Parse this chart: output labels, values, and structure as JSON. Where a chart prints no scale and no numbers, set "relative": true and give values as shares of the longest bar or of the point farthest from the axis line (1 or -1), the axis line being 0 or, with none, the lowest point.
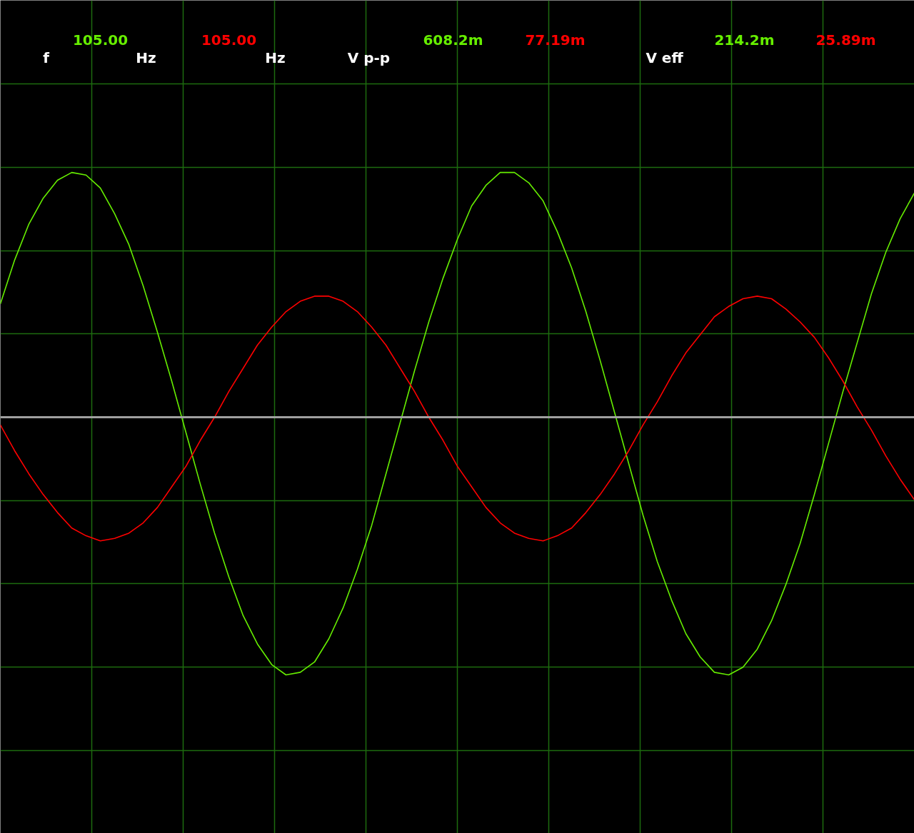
{
  "chart_data": {
    "type": "line",
    "relative": true,
    "categories": [
      null,
      null,
      null,
      null,
      null,
      null,
      null,
      null,
      null,
      null,
      null,
      null,
      null,
      null,
      null,
      null,
      null,
      null,
      null,
      null,
      null,
      null,
      null,
      null,
      null,
      null,
      null,
      null,
      null,
      null,
      null,
      null,
      null,
      null,
      null,
      null,
      null,
      null,
      null,
      null,
      null,
      null,
      null,
      null,
      null,
      null,
      null,
      null,
      null,
      null,
      null,
      null,
      null,
      null,
      null,
      null,
      null,
      null,
      null,
      null,
      null,
      null,
      null,
      null,
      null
    ],
    "series": [
      {
        "color": "#66ee00",
        "values": [
          0.44,
          0.61,
          0.75,
          0.85,
          0.92,
          0.95,
          0.94,
          0.89,
          0.79,
          0.67,
          0.51,
          0.33,
          0.14,
          -0.06,
          -0.26,
          -0.45,
          -0.62,
          -0.77,
          -0.88,
          -0.96,
          -1.0,
          -0.99,
          -0.95,
          -0.86,
          -0.74,
          -0.59,
          -0.42,
          -0.22,
          -0.02,
          0.18,
          0.37,
          0.54,
          0.69,
          0.82,
          0.9,
          0.95,
          0.95,
          0.91,
          0.84,
          0.72,
          0.58,
          0.41,
          0.22,
          0.02,
          -0.18,
          -0.38,
          -0.56,
          -0.71,
          -0.84,
          -0.93,
          -0.99,
          -1.0,
          -0.97,
          -0.9,
          -0.79,
          -0.65,
          -0.49,
          -0.3,
          -0.1,
          0.1,
          0.29,
          0.48,
          0.64,
          0.77,
          0.87
        ]
      },
      {
        "color": "#ff0000",
        "values": [
          -0.03,
          -0.13,
          -0.22,
          -0.3,
          -0.37,
          -0.43,
          -0.46,
          -0.48,
          -0.47,
          -0.45,
          -0.41,
          -0.35,
          -0.27,
          -0.19,
          -0.09,
          0.0,
          0.1,
          0.19,
          0.28,
          0.35,
          0.41,
          0.45,
          0.47,
          0.47,
          0.45,
          0.41,
          0.35,
          0.28,
          0.19,
          0.1,
          0.0,
          -0.09,
          -0.19,
          -0.27,
          -0.35,
          -0.41,
          -0.45,
          -0.47,
          -0.48,
          -0.46,
          -0.43,
          -0.37,
          -0.3,
          -0.22,
          -0.13,
          -0.03,
          0.06,
          0.16,
          0.25,
          0.32,
          0.39,
          0.43,
          0.46,
          0.47,
          0.46,
          0.42,
          0.37,
          0.31,
          0.23,
          0.14,
          0.04,
          -0.05,
          -0.15,
          -0.24,
          -0.32
        ]
      }
    ],
    "line_style": "solid",
    "grid": true,
    "ref_lines": [
      {
        "axis": "y",
        "value": 0,
        "color": "#a0a0a0"
      }
    ],
    "annotations": [
      "f",
      "105.00",
      "Hz",
      "105.00",
      "Hz",
      "V p-p",
      "608.2m",
      "77.19m",
      "V eff",
      "214.2m",
      "25.89m"
    ]
  }
}
